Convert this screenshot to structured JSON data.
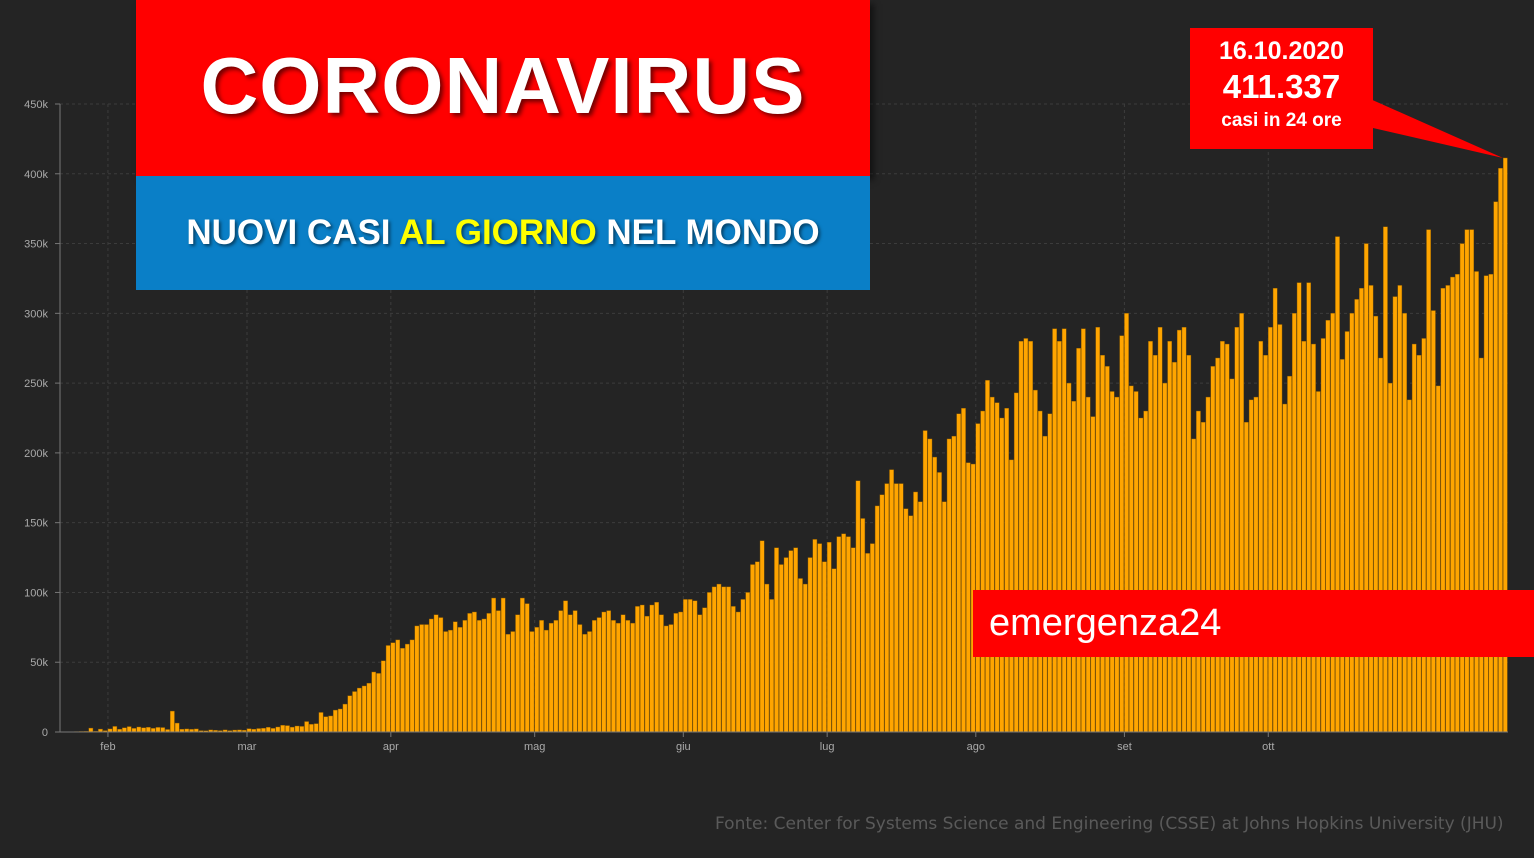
{
  "header": {
    "title": "CORONAVIRUS",
    "subtitle_part1": "NUOVI CASI ",
    "subtitle_highlight": "AL GIORNO",
    "subtitle_part2": " NEL MONDO"
  },
  "callout": {
    "date": "16.10.2020",
    "value": "411.337",
    "note": "casi in 24 ore"
  },
  "brand": "emergenza24",
  "source": "Fonte: Center for Systems Science and Engineering (CSSE) at Johns Hopkins University (JHU)",
  "colors": {
    "background": "#242424",
    "bar": "#ffa500",
    "bar_edge": "#8a5a00",
    "title_red": "#ff0000",
    "subtitle_blue": "#0a7fc7",
    "highlight_yellow": "#ffff00"
  },
  "chart_data": {
    "type": "bar",
    "title": "",
    "xlabel": "",
    "ylabel": "",
    "ylim": [
      0,
      450000
    ],
    "y_ticks": [
      0,
      50000,
      100000,
      150000,
      200000,
      250000,
      300000,
      350000,
      400000,
      450000
    ],
    "y_tick_labels": [
      "0",
      "50k",
      "100k",
      "150k",
      "200k",
      "250k",
      "300k",
      "350k",
      "400k",
      "450k"
    ],
    "x_tick_labels": [
      "feb",
      "mar",
      "apr",
      "mag",
      "giu",
      "lug",
      "ago",
      "set",
      "ott"
    ],
    "x_tick_day_index": [
      10,
      39,
      69,
      99,
      130,
      160,
      191,
      222,
      252
    ],
    "grid": true,
    "series": [
      {
        "values": [
          0,
          0,
          100,
          300,
          400,
          500,
          2800,
          600,
          2100,
          1000,
          2200,
          4000,
          2000,
          3000,
          3900,
          2600,
          3600,
          3000,
          3400,
          2600,
          3300,
          3200,
          1800,
          15000,
          6400,
          2000,
          2200,
          1900,
          2200,
          1000,
          900,
          1500,
          1200,
          1000,
          1500,
          1000,
          1400,
          1500,
          1300,
          2400,
          2000,
          2500,
          2700,
          3400,
          2600,
          3600,
          4800,
          4600,
          3500,
          4300,
          4000,
          7500,
          5500,
          6000,
          14000,
          11000,
          11500,
          15700,
          16500,
          20000,
          26000,
          29000,
          31500,
          33000,
          35000,
          43000,
          42000,
          51000,
          62000,
          64000,
          66000,
          60000,
          63000,
          66000,
          76000,
          77000,
          77000,
          81000,
          84000,
          82000,
          72000,
          73000,
          79000,
          75000,
          80000,
          85000,
          86000,
          80000,
          81000,
          85000,
          96000,
          87000,
          96000,
          70000,
          72000,
          84000,
          96000,
          92000,
          72000,
          75000,
          80000,
          73000,
          78000,
          80000,
          87000,
          94000,
          84000,
          87000,
          77000,
          70000,
          72000,
          80000,
          82000,
          86000,
          87000,
          80000,
          78000,
          84000,
          80000,
          78000,
          90000,
          91000,
          83000,
          91000,
          93000,
          84000,
          76000,
          77000,
          85000,
          86000,
          95000,
          95000,
          94000,
          84000,
          89000,
          100000,
          104000,
          106000,
          104000,
          104000,
          90000,
          86000,
          95000,
          100000,
          120000,
          122000,
          137000,
          106000,
          95000,
          132000,
          120000,
          125000,
          130000,
          132000,
          110000,
          106000,
          125000,
          138000,
          135000,
          122000,
          136000,
          117000,
          140000,
          142000,
          140000,
          132000,
          180000,
          153000,
          128000,
          135000,
          162000,
          170000,
          178000,
          188000,
          178000,
          178000,
          160000,
          155000,
          172000,
          165000,
          216000,
          210000,
          197000,
          186000,
          165000,
          210000,
          212000,
          228000,
          232000,
          193000,
          192000,
          221000,
          230000,
          252000,
          240000,
          236000,
          225000,
          232000,
          195000,
          243000,
          280000,
          282000,
          280000,
          245000,
          230000,
          212000,
          228000,
          289000,
          280000,
          289000,
          250000,
          237000,
          275000,
          289000,
          240000,
          226000,
          290000,
          270000,
          262000,
          244000,
          240000,
          284000,
          300000,
          248000,
          244000,
          225000,
          230000,
          280000,
          270000,
          290000,
          250000,
          280000,
          265000,
          288000,
          290000,
          270000,
          210000,
          230000,
          222000,
          240000,
          262000,
          268000,
          280000,
          278000,
          253000,
          290000,
          300000,
          222000,
          238000,
          240000,
          280000,
          270000,
          290000,
          318000,
          292000,
          235000,
          255000,
          300000,
          322000,
          280000,
          322000,
          278000,
          244000,
          282000,
          295000,
          300000,
          355000,
          267000,
          287000,
          300000,
          310000,
          318000,
          350000,
          320000,
          298000,
          268000,
          362000,
          250000,
          312000,
          320000,
          300000,
          238000,
          278000,
          270000,
          282000,
          360000,
          302000,
          248000,
          318000,
          320000,
          326000,
          328000,
          350000,
          360000,
          360000,
          330000,
          268000,
          327000,
          328000,
          380000,
          404000,
          411337
        ]
      }
    ]
  }
}
